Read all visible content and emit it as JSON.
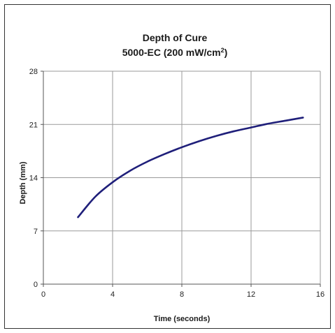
{
  "chart_data": {
    "type": "line",
    "title": "Depth of Cure",
    "subtitle_prefix": "5000-EC (200 mW/cm",
    "subtitle_sup": "2",
    "subtitle_suffix": ")",
    "xlabel": "Time (seconds)",
    "ylabel": "Depth (mm)",
    "xlim": [
      0,
      16
    ],
    "ylim": [
      0,
      28
    ],
    "xticks": [
      0,
      4,
      8,
      12,
      16
    ],
    "yticks": [
      0,
      7,
      14,
      21,
      28
    ],
    "grid": true,
    "series": [
      {
        "color": "#1f1f7a",
        "x": [
          2,
          3,
          4,
          5,
          6,
          7,
          8,
          9,
          10,
          11,
          12,
          13,
          14,
          15
        ],
        "y": [
          8.8,
          11.5,
          13.4,
          14.9,
          16.1,
          17.1,
          18.0,
          18.8,
          19.5,
          20.1,
          20.6,
          21.1,
          21.5,
          21.9
        ]
      }
    ]
  }
}
